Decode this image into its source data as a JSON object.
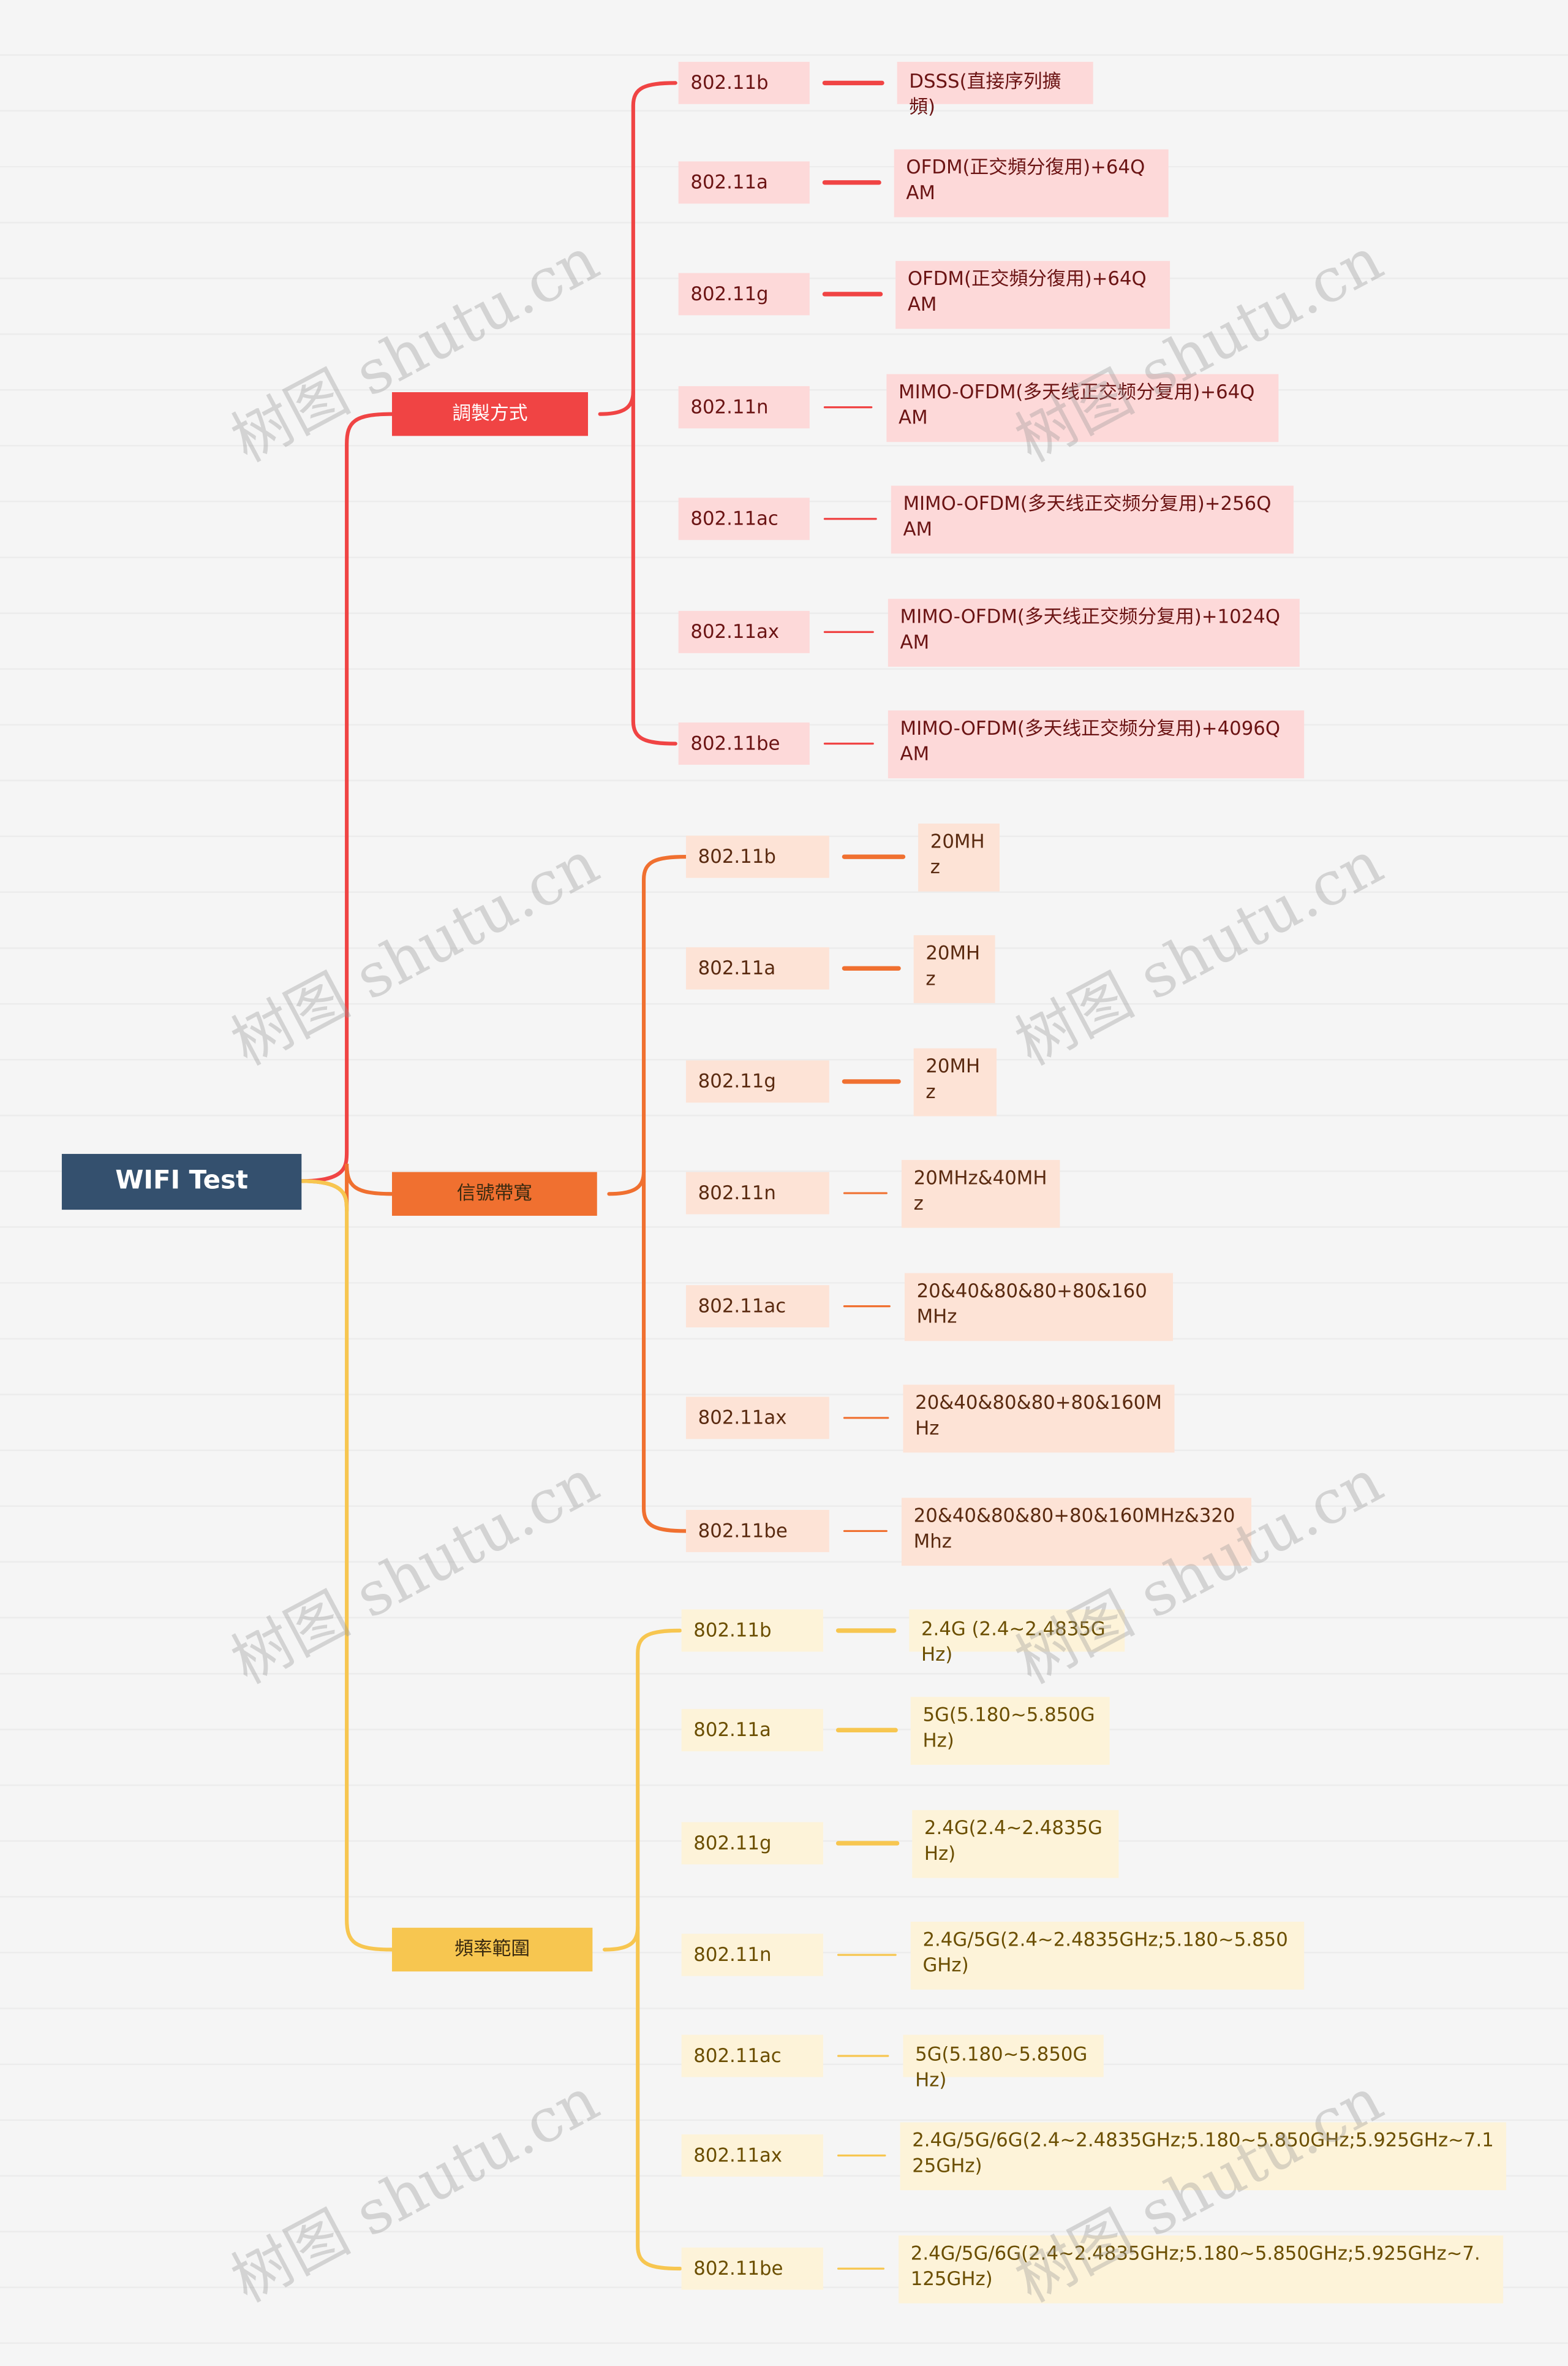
{
  "root": {
    "label": "WIFI Test",
    "color": "#34506e"
  },
  "watermark": "树图 shutu.cn",
  "branches": [
    {
      "label": "調製方式",
      "color": "#f04444",
      "child_bg": "#fdd9d9",
      "text_color": "#6b1414",
      "items": [
        {
          "key": "802.11b",
          "value": "DSSS(直接序列擴頻)"
        },
        {
          "key": "802.11a",
          "value": "OFDM(正交頻分復用)+64QAM"
        },
        {
          "key": "802.11g",
          "value": "OFDM(正交頻分復用)+64QAM"
        },
        {
          "key": "802.11n",
          "value": "MIMO-OFDM(多天线正交频分复用)+64QAM"
        },
        {
          "key": "802.11ac",
          "value": "MIMO-OFDM(多天线正交频分复用)+256QAM"
        },
        {
          "key": "802.11ax",
          "value": "MIMO-OFDM(多天线正交频分复用)+1024QAM"
        },
        {
          "key": "802.11be",
          "value": "MIMO-OFDM(多天线正交频分复用)+4096QAM"
        }
      ]
    },
    {
      "label": "信號帶寬",
      "color": "#f07030",
      "child_bg": "#fde3d6",
      "text_color": "#5a2a10",
      "items": [
        {
          "key": "802.11b",
          "value": "20MHz"
        },
        {
          "key": "802.11a",
          "value": "20MHz"
        },
        {
          "key": "802.11g",
          "value": "20MHz"
        },
        {
          "key": "802.11n",
          "value": "20MHz&40MHz"
        },
        {
          "key": "802.11ac",
          "value": "20&40&80&80+80&160MHz"
        },
        {
          "key": "802.11ax",
          "value": "20&40&80&80+80&160MHz"
        },
        {
          "key": "802.11be",
          "value": "20&40&80&80+80&160MHz&320Mhz"
        }
      ]
    },
    {
      "label": "頻率範圍",
      "color": "#f7c650",
      "child_bg": "#fdf3d9",
      "text_color": "#6b4e00",
      "items": [
        {
          "key": "802.11b",
          "value": "2.4G (2.4~2.4835GHz)"
        },
        {
          "key": "802.11a",
          "value": "5G(5.180~5.850GHz)"
        },
        {
          "key": "802.11g",
          "value": "2.4G(2.4~2.4835GHz)"
        },
        {
          "key": "802.11n",
          "value": "2.4G/5G(2.4~2.4835GHz;5.180~5.850GHz)"
        },
        {
          "key": "802.11ac",
          "value": "5G(5.180~5.850GHz)"
        },
        {
          "key": "802.11ax",
          "value": "2.4G/5G/6G(2.4~2.4835GHz;5.180~5.850GHz;5.925GHz~7.125GHz)"
        },
        {
          "key": "802.11be",
          "value": "2.4G/5G/6G(2.4~2.4835GHz;5.180~5.850GHz;5.925GHz~7.125GHz)"
        }
      ]
    }
  ]
}
